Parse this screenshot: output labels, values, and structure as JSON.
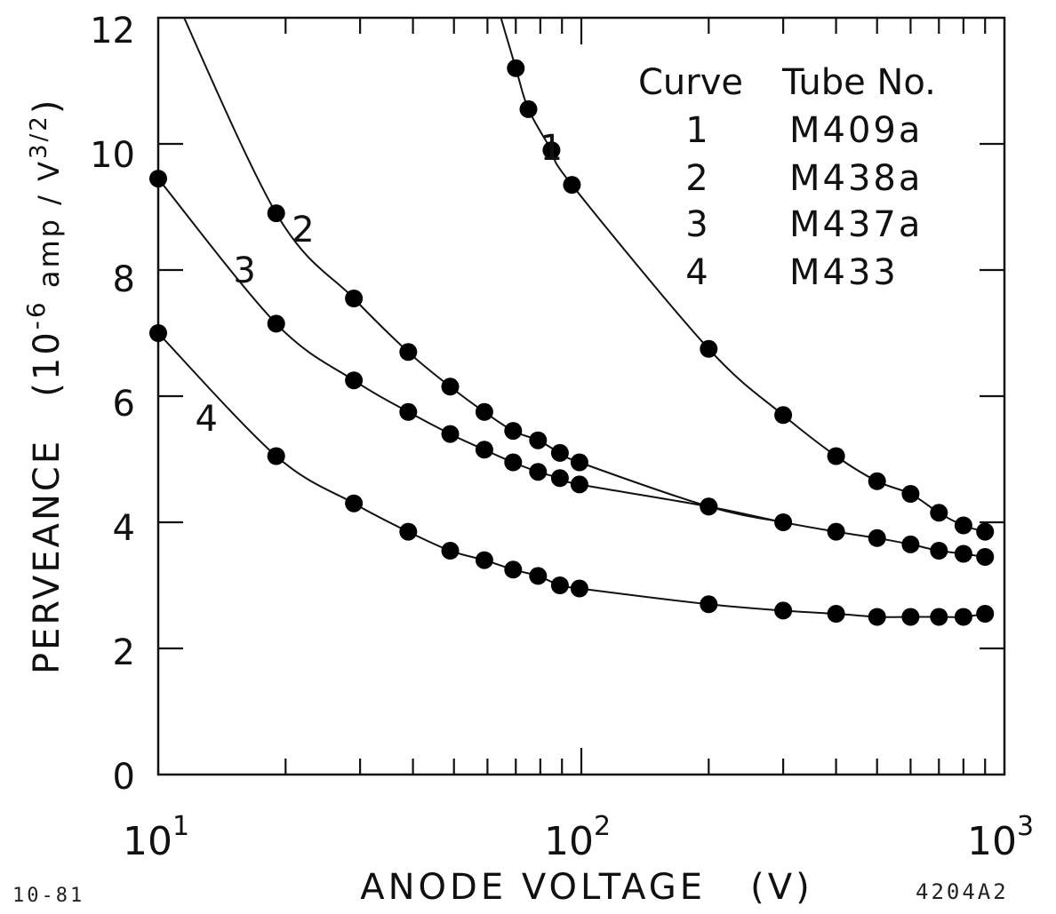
{
  "chart_data": {
    "type": "scatter",
    "x_scale": "log",
    "xlim": [
      10,
      1000
    ],
    "ylim": [
      0,
      12
    ],
    "xlabel": "ANODE VOLTAGE   (V)",
    "ylabel": "PERVEANCE   (10",
    "ylabel_unit_parts": [
      "-6",
      " amp / V",
      "3/2",
      ")"
    ],
    "x_tick_labels": [
      {
        "base": "10",
        "exp": "1",
        "value": 10
      },
      {
        "base": "10",
        "exp": "2",
        "value": 100
      },
      {
        "base": "10",
        "exp": "3",
        "value": 1000
      }
    ],
    "y_ticks": [
      "0",
      "2",
      "4",
      "6",
      "8",
      "10",
      "12"
    ],
    "legend_headers": {
      "curve": "Curve",
      "tube": "Tube No."
    },
    "series": [
      {
        "name": "M409a",
        "label": "1",
        "x": [
          70,
          75,
          85,
          95,
          200,
          300,
          400,
          500,
          600,
          700,
          800,
          900
        ],
        "y": [
          11.2,
          10.55,
          9.9,
          9.35,
          6.75,
          5.7,
          5.05,
          4.65,
          4.45,
          4.15,
          3.95,
          3.85
        ],
        "curve_label_at": [
          85,
          9.75
        ]
      },
      {
        "name": "M438a",
        "label": "2",
        "x": [
          19,
          29,
          39,
          49,
          59,
          69,
          79,
          89,
          99,
          200
        ],
        "y": [
          8.9,
          7.55,
          6.7,
          6.15,
          5.75,
          5.45,
          5.3,
          5.1,
          4.95,
          4.25
        ],
        "curve_label_at": [
          22,
          8.45
        ]
      },
      {
        "name": "M437a",
        "label": "3",
        "x": [
          10,
          19,
          29,
          39,
          49,
          59,
          69,
          79,
          89,
          99,
          200,
          300,
          400,
          500,
          600,
          700,
          800,
          900
        ],
        "y": [
          9.45,
          7.15,
          6.25,
          5.75,
          5.4,
          5.15,
          4.95,
          4.8,
          4.7,
          4.6,
          4.25,
          4.0,
          3.85,
          3.75,
          3.65,
          3.55,
          3.5,
          3.45
        ],
        "curve_label_at": [
          16,
          7.8
        ]
      },
      {
        "name": "M433",
        "label": "4",
        "x": [
          10,
          19,
          29,
          39,
          49,
          59,
          69,
          79,
          89,
          99,
          200,
          300,
          400,
          500,
          600,
          700,
          800,
          900
        ],
        "y": [
          7.0,
          5.05,
          4.3,
          3.85,
          3.55,
          3.4,
          3.25,
          3.15,
          3.0,
          2.95,
          2.7,
          2.6,
          2.55,
          2.5,
          2.5,
          2.5,
          2.5,
          2.55
        ],
        "curve_label_at": [
          13,
          5.45
        ]
      }
    ]
  },
  "footer": {
    "left_code": "10-81",
    "right_code": "4204A2"
  }
}
